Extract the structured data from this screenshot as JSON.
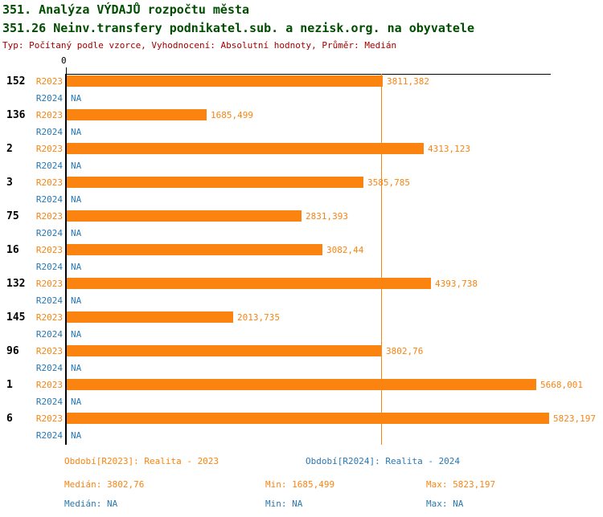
{
  "title": "351. Analýza VÝDAJŮ rozpočtu města",
  "subtitle": "351.26 Neinv.transfery podnikatel.sub. a nezisk.org. na obyvatele",
  "meta_line": "Typ: Počítaný podle vzorce, Vyhodnocení: Absolutní hodnoty, Průměr: Medián",
  "colors": {
    "bar_orange": "#FB830F",
    "series_blue": "#2878B4",
    "title_green": "#004D00",
    "meta_red": "#A40000",
    "axis_black": "#000000"
  },
  "chart_data": {
    "type": "bar",
    "orientation": "horizontal",
    "axis_zero_label": "0",
    "xlim": [
      0,
      5823.197
    ],
    "grid": false,
    "median_line_value": 3802.76,
    "na_label": "NA",
    "series_names": [
      "R2023",
      "R2024"
    ],
    "rows": [
      {
        "id": "152",
        "r2023_label": "R2023",
        "r2023_value": 3811.382,
        "r2023_value_label": "3811,382",
        "r2024_label": "R2024",
        "r2024_value_label": "NA"
      },
      {
        "id": "136",
        "r2023_label": "R2023",
        "r2023_value": 1685.499,
        "r2023_value_label": "1685,499",
        "r2024_label": "R2024",
        "r2024_value_label": "NA"
      },
      {
        "id": "2",
        "r2023_label": "R2023",
        "r2023_value": 4313.123,
        "r2023_value_label": "4313,123",
        "r2024_label": "R2024",
        "r2024_value_label": "NA"
      },
      {
        "id": "3",
        "r2023_label": "R2023",
        "r2023_value": 3585.785,
        "r2023_value_label": "3585,785",
        "r2024_label": "R2024",
        "r2024_value_label": "NA"
      },
      {
        "id": "75",
        "r2023_label": "R2023",
        "r2023_value": 2831.393,
        "r2023_value_label": "2831,393",
        "r2024_label": "R2024",
        "r2024_value_label": "NA"
      },
      {
        "id": "16",
        "r2023_label": "R2023",
        "r2023_value": 3082.44,
        "r2023_value_label": "3082,44",
        "r2024_label": "R2024",
        "r2024_value_label": "NA"
      },
      {
        "id": "132",
        "r2023_label": "R2023",
        "r2023_value": 4393.738,
        "r2023_value_label": "4393,738",
        "r2024_label": "R2024",
        "r2024_value_label": "NA"
      },
      {
        "id": "145",
        "r2023_label": "R2023",
        "r2023_value": 2013.735,
        "r2023_value_label": "2013,735",
        "r2024_label": "R2024",
        "r2024_value_label": "NA"
      },
      {
        "id": "96",
        "r2023_label": "R2023",
        "r2023_value": 3802.76,
        "r2023_value_label": "3802,76",
        "r2024_label": "R2024",
        "r2024_value_label": "NA"
      },
      {
        "id": "1",
        "r2023_label": "R2023",
        "r2023_value": 5668.001,
        "r2023_value_label": "5668,001",
        "r2024_label": "R2024",
        "r2024_value_label": "NA"
      },
      {
        "id": "6",
        "r2023_label": "R2023",
        "r2023_value": 5823.197,
        "r2023_value_label": "5823,197",
        "r2024_label": "R2024",
        "r2024_value_label": "NA"
      }
    ]
  },
  "legend": {
    "period_2023": "Období[R2023]: Realita - 2023",
    "period_2024": "Období[R2024]: Realita - 2024",
    "median_2023": "Medián: 3802,76",
    "min_2023": "Min: 1685,499",
    "max_2023": "Max: 5823,197",
    "median_2024": "Medián: NA",
    "min_2024": "Min: NA",
    "max_2024": "Max: NA"
  }
}
